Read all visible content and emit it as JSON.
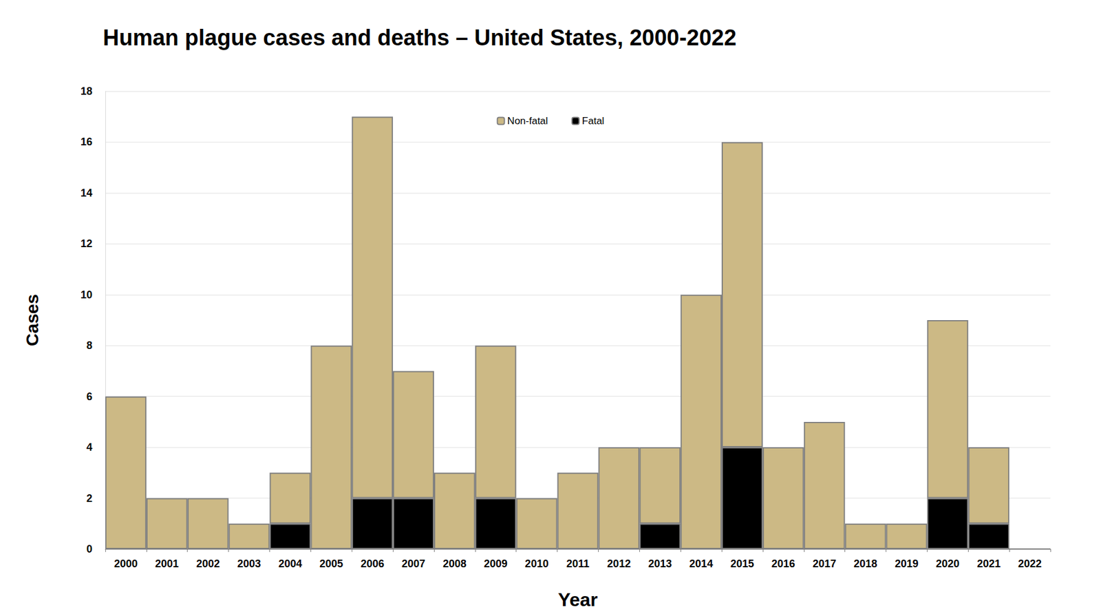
{
  "chart_data": {
    "type": "bar",
    "title": "Human plague cases and deaths – United States, 2000-2022",
    "x_label": "Year",
    "y_label": "Cases",
    "categories": [
      "2000",
      "2001",
      "2002",
      "2003",
      "2004",
      "2005",
      "2006",
      "2007",
      "2008",
      "2009",
      "2010",
      "2011",
      "2012",
      "2013",
      "2014",
      "2015",
      "2016",
      "2017",
      "2018",
      "2019",
      "2020",
      "2021",
      "2022"
    ],
    "series": [
      {
        "name": "Non-fatal",
        "color": "#ccb985",
        "values": [
          6,
          2,
          2,
          1,
          2,
          8,
          15,
          5,
          3,
          6,
          2,
          3,
          4,
          3,
          10,
          12,
          4,
          5,
          1,
          1,
          7,
          3,
          0
        ]
      },
      {
        "name": "Fatal",
        "color": "#000000",
        "values": [
          0,
          0,
          0,
          0,
          1,
          0,
          2,
          2,
          0,
          2,
          0,
          0,
          0,
          1,
          0,
          4,
          0,
          0,
          0,
          0,
          2,
          1,
          0
        ]
      }
    ],
    "stacked": true,
    "ylim": [
      0,
      18
    ],
    "yticks": [
      0,
      2,
      4,
      6,
      8,
      10,
      12,
      14,
      16,
      18
    ],
    "grid": true,
    "legend": "top"
  }
}
